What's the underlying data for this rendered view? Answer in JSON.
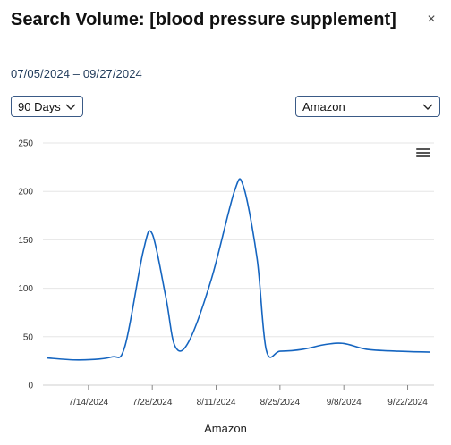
{
  "header": {
    "title": "Search Volume: [blood pressure supplement]",
    "date_range": "07/05/2024 – 09/27/2024",
    "close_symbol": "×"
  },
  "controls": {
    "range_select": {
      "value": "90 Days"
    },
    "source_select": {
      "value": "Amazon"
    },
    "menu_icon": "hamburger-menu-icon"
  },
  "colors": {
    "line": "#1565c0",
    "select_border": "#3a5a86",
    "grid": "#e6e6e6"
  },
  "chart_data": {
    "type": "line",
    "title": "",
    "xlabel": "Amazon",
    "ylabel": "",
    "ylim": [
      0,
      250
    ],
    "yticks": [
      0,
      50,
      100,
      150,
      200,
      250
    ],
    "xticks": [
      "7/14/2024",
      "7/28/2024",
      "8/11/2024",
      "8/25/2024",
      "9/8/2024",
      "9/22/2024"
    ],
    "grid": true,
    "series": [
      {
        "x": [
          "7/5/2024",
          "7/12/2024",
          "7/19/2024",
          "7/22/2024",
          "7/26/2024",
          "7/28/2024",
          "7/31/2024",
          "8/2/2024",
          "8/5/2024",
          "8/10/2024",
          "8/15/2024",
          "8/17/2024",
          "8/20/2024",
          "8/22/2024",
          "8/25/2024",
          "8/30/2024",
          "9/4/2024",
          "9/8/2024",
          "9/13/2024",
          "9/20/2024",
          "9/27/2024"
        ],
        "y": [
          28,
          26,
          29,
          40,
          138,
          156,
          90,
          40,
          45,
          110,
          200,
          205,
          130,
          36,
          35,
          37,
          42,
          43,
          37,
          35,
          34
        ]
      }
    ]
  }
}
